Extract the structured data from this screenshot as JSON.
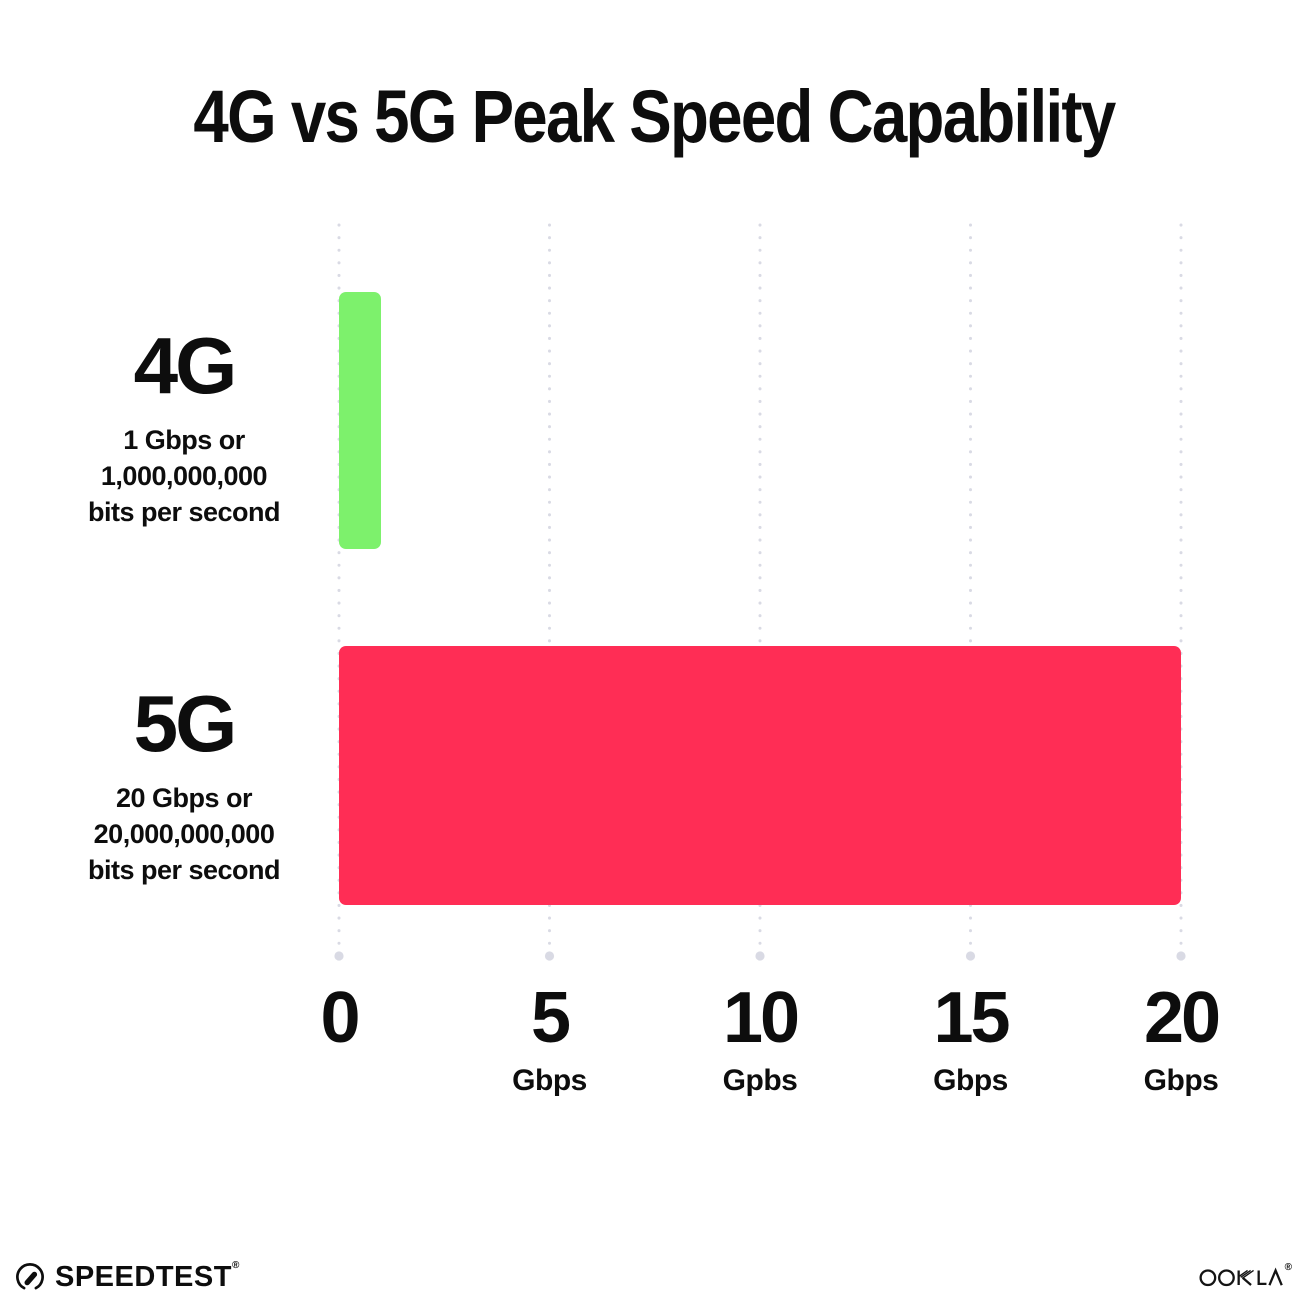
{
  "chart_data": {
    "type": "bar",
    "orientation": "horizontal",
    "title": "4G vs 5G Peak Speed Capability",
    "categories": [
      "4G",
      "5G"
    ],
    "values": [
      1,
      20
    ],
    "value_unit": "Gbps",
    "xlim": [
      0,
      20
    ],
    "bar_colors": [
      "#7DF16C",
      "#FF2D55"
    ],
    "grid": "dotted vertical gridlines at each tick, larger dot at bottom end",
    "grid_color": "#D9DAE4",
    "legend": "none",
    "row_labels": [
      {
        "heading": "4G",
        "lines": [
          "1 Gbps or",
          "1,000,000,000",
          "bits per second"
        ]
      },
      {
        "heading": "5G",
        "lines": [
          "20 Gbps or",
          "20,000,000,000",
          "bits per second"
        ]
      }
    ],
    "x_ticks": [
      {
        "value": 0,
        "label": "0",
        "unit": ""
      },
      {
        "value": 5,
        "label": "5",
        "unit": "Gbps"
      },
      {
        "value": 10,
        "label": "10",
        "unit": "Gpbs"
      },
      {
        "value": 15,
        "label": "15",
        "unit": "Gbps"
      },
      {
        "value": 20,
        "label": "20",
        "unit": "Gbps"
      }
    ]
  },
  "footer": {
    "speedtest_label": "SPEEDTEST",
    "speedtest_mark": "®",
    "speedtest_icon": "gauge-icon",
    "ookla_label": "OOKLA",
    "ookla_mark": "®",
    "ookla_icon": "ookla-wordmark"
  },
  "colors": {
    "bar_4g": "#7DF16C",
    "bar_5g": "#FF2D55",
    "text": "#0D0D0D",
    "grid": "#D9DAE4",
    "background": "#FFFFFF"
  }
}
